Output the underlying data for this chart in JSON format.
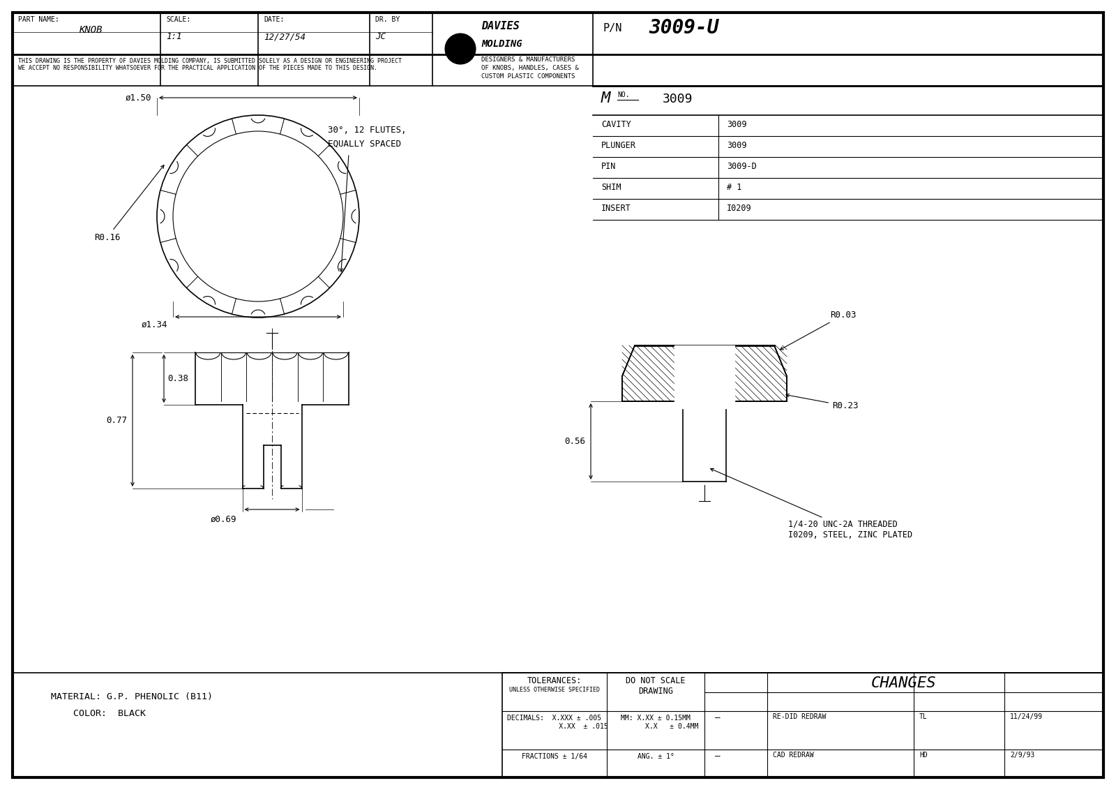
{
  "line_color": "#000000",
  "part_name": "KNOB",
  "scale": "1:1",
  "date": "12/27/54",
  "dr_by": "JC",
  "pn": "3009-U",
  "mno": "3009",
  "cavity": "3009",
  "plunger": "3009",
  "pin": "3009-D",
  "shim": "# 1",
  "insert": "I0209",
  "material": "MATERIAL: G.P. PHENOLIC (B11)",
  "color_text": "    COLOR:  BLACK",
  "copyright": "THIS DRAWING IS THE PROPERTY OF DAVIES MOLDING COMPANY, IS SUBMITTED SOLELY AS A DESIGN OR ENGINEERING PROJECT\nWE ACCEPT NO RESPONSIBILITY WHATSOEVER FOR THE PRACTICAL APPLICATION OF THE PIECES MADE TO THIS DESIGN.",
  "davies_text1": "DESIGNERS & MANUFACTURERS",
  "davies_text2": "OF KNOBS, HANDLES, CASES &",
  "davies_text3": "CUSTOM PLASTIC COMPONENTS",
  "redraw1": "RE-DID REDRAW",
  "redraw1_by": "TL",
  "redraw1_date": "11/24/99",
  "redraw2": "CAD REDRAW",
  "redraw2_by": "HD",
  "redraw2_date": "2/9/93"
}
